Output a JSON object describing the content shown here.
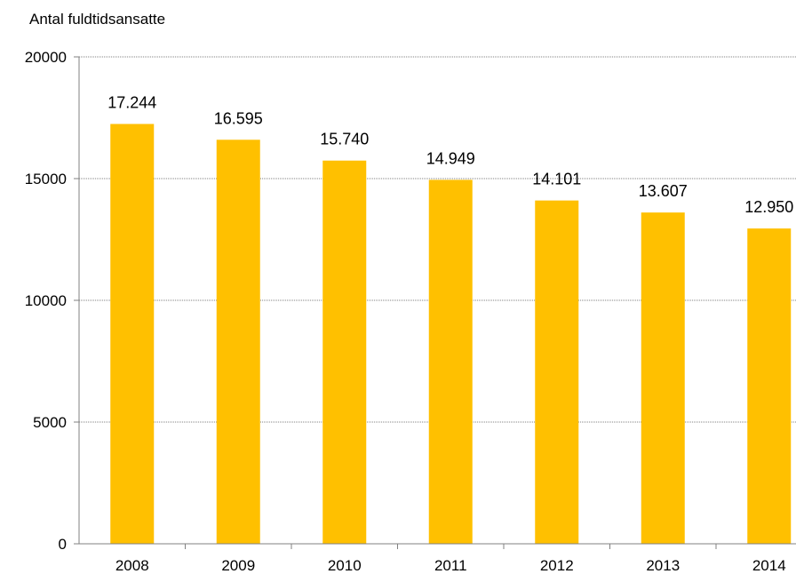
{
  "chart_data": {
    "type": "bar",
    "title": "",
    "xlabel": "",
    "ylabel": "Antal fuldtidsansatte",
    "categories": [
      "2008",
      "2009",
      "2010",
      "2011",
      "2012",
      "2013",
      "2014"
    ],
    "values": [
      17244,
      16595,
      15740,
      14949,
      14101,
      13607,
      12950
    ],
    "value_labels": [
      "17.244",
      "16.595",
      "15.740",
      "14.949",
      "14.101",
      "13.607",
      "12.950"
    ],
    "ylim": [
      0,
      20000
    ],
    "yticks": [
      0,
      5000,
      10000,
      15000,
      20000
    ],
    "ytick_labels": [
      "0",
      "5000",
      "10000",
      "15000",
      "20000"
    ],
    "grid": "horizontal dotted",
    "legend": "none",
    "colors": {
      "bar": "#FFC000",
      "grid": "#808080",
      "axis": "#808080"
    }
  }
}
